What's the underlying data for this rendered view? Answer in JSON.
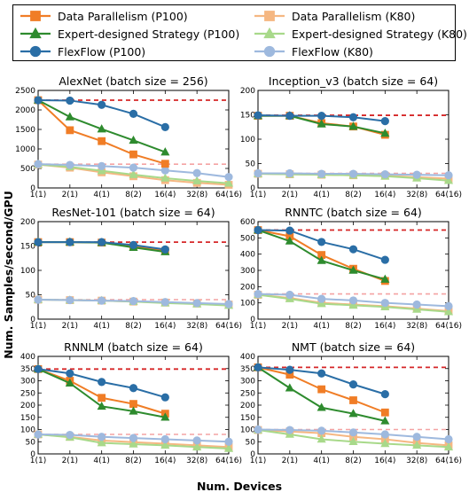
{
  "colors": {
    "dp_p100": "#f07d26",
    "ed_p100": "#2e8b2e",
    "ff_p100": "#2a6ea6",
    "dp_k80": "#f5b782",
    "ed_k80": "#a8d98a",
    "ff_k80": "#9eb9de",
    "ref_p100": "#d62728",
    "ref_k80": "#f4a3a3"
  },
  "legend": [
    {
      "label": "Data Parallelism (P100)",
      "key": "dp_p100",
      "marker": "square"
    },
    {
      "label": "Data Parallelism (K80)",
      "key": "dp_k80",
      "marker": "square"
    },
    {
      "label": "Expert-designed Strategy (P100)",
      "key": "ed_p100",
      "marker": "triangle"
    },
    {
      "label": "Expert-designed Strategy (K80)",
      "key": "ed_k80",
      "marker": "triangle"
    },
    {
      "label": "FlexFlow (P100)",
      "key": "ff_p100",
      "marker": "circle"
    },
    {
      "label": "FlexFlow (K80)",
      "key": "ff_k80",
      "marker": "circle"
    }
  ],
  "chart_data": {
    "type": "line",
    "ylabel": "Num. Samples/second/GPU",
    "xlabel": "Num. Devices",
    "x_ticks": [
      "1(1)",
      "2(1)",
      "4(1)",
      "8(2)",
      "16(4)",
      "32(8)",
      "64(16)"
    ],
    "subplots": [
      {
        "title": "AlexNet (batch size = 256)",
        "ylim": [
          0,
          2500
        ],
        "yticks": [
          0,
          500,
          1000,
          1500,
          2000,
          2500
        ],
        "ref_p100": 2250,
        "ref_k80": 610,
        "series": [
          {
            "name": "Data Parallelism (K80)",
            "key": "dp_k80",
            "marker": "square",
            "values": [
              600,
              520,
              400,
              300,
              200,
              130,
              80
            ]
          },
          {
            "name": "Expert-designed Strategy (K80)",
            "key": "ed_k80",
            "marker": "triangle",
            "values": [
              600,
              540,
              440,
              340,
              250,
              180,
              120
            ]
          },
          {
            "name": "FlexFlow (K80)",
            "key": "ff_k80",
            "marker": "circle",
            "values": [
              610,
              590,
              560,
              520,
              450,
              380,
              280
            ]
          },
          {
            "name": "Data Parallelism (P100)",
            "key": "dp_p100",
            "marker": "square",
            "values": [
              2250,
              1480,
              1200,
              860,
              620
            ]
          },
          {
            "name": "Expert-designed Strategy (P100)",
            "key": "ed_p100",
            "marker": "triangle",
            "values": [
              2250,
              1820,
              1510,
              1220,
              920
            ]
          },
          {
            "name": "FlexFlow (P100)",
            "key": "ff_p100",
            "marker": "circle",
            "values": [
              2250,
              2240,
              2130,
              1900,
              1560
            ]
          }
        ]
      },
      {
        "title": "Inception_v3 (batch size = 64)",
        "ylim": [
          0,
          200
        ],
        "yticks": [
          0,
          50,
          100,
          150,
          200
        ],
        "ref_p100": 149,
        "ref_k80": 30,
        "series": [
          {
            "name": "Data Parallelism (K80)",
            "key": "dp_k80",
            "marker": "square",
            "values": [
              29,
              28,
              27,
              26,
              25,
              22,
              19
            ]
          },
          {
            "name": "Expert-designed Strategy (K80)",
            "key": "ed_k80",
            "marker": "triangle",
            "values": [
              29,
              28,
              27,
              26,
              24,
              20,
              15
            ]
          },
          {
            "name": "FlexFlow (K80)",
            "key": "ff_k80",
            "marker": "circle",
            "values": [
              30,
              30,
              29,
              29,
              28,
              27,
              26
            ]
          },
          {
            "name": "Data Parallelism (P100)",
            "key": "dp_p100",
            "marker": "square",
            "values": [
              148,
              148,
              133,
              126,
              109
            ]
          },
          {
            "name": "Expert-designed Strategy (P100)",
            "key": "ed_p100",
            "marker": "triangle",
            "values": [
              148,
              148,
              131,
              126,
              112
            ]
          },
          {
            "name": "FlexFlow (P100)",
            "key": "ff_p100",
            "marker": "circle",
            "values": [
              149,
              148,
              148,
              145,
              137
            ]
          }
        ]
      },
      {
        "title": "ResNet-101 (batch size = 64)",
        "ylim": [
          0,
          200
        ],
        "yticks": [
          0,
          50,
          100,
          150,
          200
        ],
        "ref_p100": 158,
        "ref_k80": 40,
        "series": [
          {
            "name": "Data Parallelism (K80)",
            "key": "dp_k80",
            "marker": "square",
            "values": [
              40,
              39,
              38,
              36,
              34,
              32,
              30
            ]
          },
          {
            "name": "Expert-designed Strategy (K80)",
            "key": "ed_k80",
            "marker": "triangle",
            "values": [
              40,
              39,
              38,
              36,
              33,
              31,
              28
            ]
          },
          {
            "name": "FlexFlow (K80)",
            "key": "ff_k80",
            "marker": "circle",
            "values": [
              40,
              39,
              38,
              37,
              35,
              33,
              31
            ]
          },
          {
            "name": "Data Parallelism (P100)",
            "key": "dp_p100",
            "marker": "square",
            "values": [
              158,
              158,
              157,
              150,
              140
            ]
          },
          {
            "name": "Expert-designed Strategy (P100)",
            "key": "ed_p100",
            "marker": "triangle",
            "values": [
              158,
              158,
              157,
              147,
              138
            ]
          },
          {
            "name": "FlexFlow (P100)",
            "key": "ff_p100",
            "marker": "circle",
            "values": [
              158,
              158,
              158,
              152,
              143
            ]
          }
        ]
      },
      {
        "title": "RNNTC (batch size = 64)",
        "ylim": [
          0,
          600
        ],
        "yticks": [
          0,
          100,
          200,
          300,
          400,
          500,
          600
        ],
        "ref_p100": 548,
        "ref_k80": 155,
        "series": [
          {
            "name": "Data Parallelism (K80)",
            "key": "dp_k80",
            "marker": "square",
            "values": [
              150,
              130,
              100,
              90,
              80,
              65,
              50
            ]
          },
          {
            "name": "Expert-designed Strategy (K80)",
            "key": "ed_k80",
            "marker": "triangle",
            "values": [
              150,
              125,
              95,
              85,
              75,
              60,
              45
            ]
          },
          {
            "name": "FlexFlow (K80)",
            "key": "ff_k80",
            "marker": "circle",
            "values": [
              155,
              150,
              125,
              115,
              100,
              90,
              80
            ]
          },
          {
            "name": "Data Parallelism (P100)",
            "key": "dp_p100",
            "marker": "square",
            "values": [
              548,
              510,
              395,
              310,
              235
            ]
          },
          {
            "name": "Expert-designed Strategy (P100)",
            "key": "ed_p100",
            "marker": "triangle",
            "values": [
              548,
              480,
              360,
              300,
              245
            ]
          },
          {
            "name": "FlexFlow (P100)",
            "key": "ff_p100",
            "marker": "circle",
            "values": [
              548,
              545,
              475,
              430,
              365
            ]
          }
        ]
      },
      {
        "title": "RNNLM (batch size = 64)",
        "ylim": [
          0,
          400
        ],
        "yticks": [
          0,
          50,
          100,
          150,
          200,
          250,
          300,
          350,
          400
        ],
        "ref_p100": 348,
        "ref_k80": 80,
        "series": [
          {
            "name": "Data Parallelism (K80)",
            "key": "dp_k80",
            "marker": "square",
            "values": [
              80,
              70,
              55,
              48,
              42,
              35,
              28
            ]
          },
          {
            "name": "Expert-designed Strategy (K80)",
            "key": "ed_k80",
            "marker": "triangle",
            "values": [
              80,
              68,
              45,
              40,
              35,
              28,
              22
            ]
          },
          {
            "name": "FlexFlow (K80)",
            "key": "ff_k80",
            "marker": "circle",
            "values": [
              80,
              78,
              70,
              65,
              60,
              55,
              50
            ]
          },
          {
            "name": "Data Parallelism (P100)",
            "key": "dp_p100",
            "marker": "square",
            "values": [
              348,
              300,
              230,
              205,
              165
            ]
          },
          {
            "name": "Expert-designed Strategy (P100)",
            "key": "ed_p100",
            "marker": "triangle",
            "values": [
              348,
              290,
              195,
              175,
              150
            ]
          },
          {
            "name": "FlexFlow (P100)",
            "key": "ff_p100",
            "marker": "circle",
            "values": [
              348,
              330,
              295,
              270,
              232
            ]
          }
        ]
      },
      {
        "title": "NMT (batch size = 64)",
        "ylim": [
          0,
          400
        ],
        "yticks": [
          0,
          50,
          100,
          150,
          200,
          250,
          300,
          350,
          400
        ],
        "ref_p100": 355,
        "ref_k80": 100,
        "series": [
          {
            "name": "Data Parallelism (K80)",
            "key": "dp_k80",
            "marker": "square",
            "values": [
              98,
              92,
              85,
              70,
              60,
              45,
              35
            ]
          },
          {
            "name": "Expert-designed Strategy (K80)",
            "key": "ed_k80",
            "marker": "triangle",
            "values": [
              98,
              80,
              60,
              50,
              42,
              35,
              28
            ]
          },
          {
            "name": "FlexFlow (K80)",
            "key": "ff_k80",
            "marker": "circle",
            "values": [
              100,
              98,
              95,
              88,
              80,
              70,
              60
            ]
          },
          {
            "name": "Data Parallelism (P100)",
            "key": "dp_p100",
            "marker": "square",
            "values": [
              355,
              325,
              265,
              220,
              170
            ]
          },
          {
            "name": "Expert-designed Strategy (P100)",
            "key": "ed_p100",
            "marker": "triangle",
            "values": [
              355,
              270,
              190,
              165,
              135
            ]
          },
          {
            "name": "FlexFlow (P100)",
            "key": "ff_p100",
            "marker": "circle",
            "values": [
              355,
              345,
              330,
              285,
              245
            ]
          }
        ]
      }
    ]
  }
}
